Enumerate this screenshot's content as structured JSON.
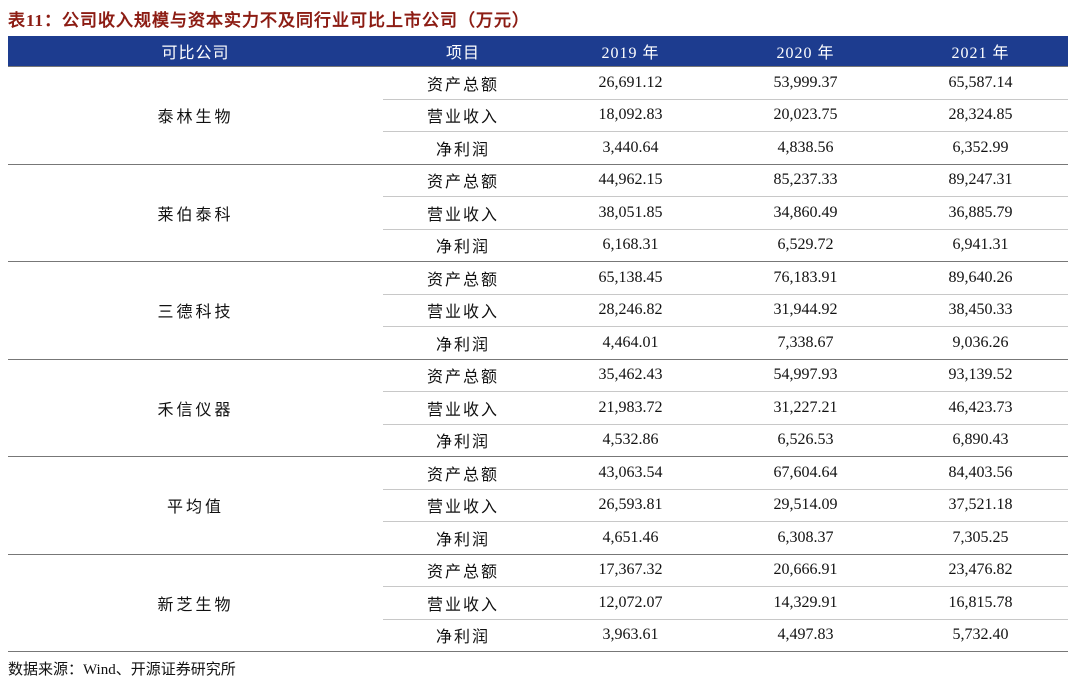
{
  "title": "表11：公司收入规模与资本实力不及同行业可比上市公司（万元）",
  "table": {
    "header": [
      "可比公司",
      "项目",
      "2019 年",
      "2020 年",
      "2021 年"
    ],
    "groups": [
      {
        "company": "泰林生物",
        "rows": [
          [
            "资产总额",
            "26,691.12",
            "53,999.37",
            "65,587.14"
          ],
          [
            "营业收入",
            "18,092.83",
            "20,023.75",
            "28,324.85"
          ],
          [
            "净利润",
            "3,440.64",
            "4,838.56",
            "6,352.99"
          ]
        ]
      },
      {
        "company": "莱伯泰科",
        "rows": [
          [
            "资产总额",
            "44,962.15",
            "85,237.33",
            "89,247.31"
          ],
          [
            "营业收入",
            "38,051.85",
            "34,860.49",
            "36,885.79"
          ],
          [
            "净利润",
            "6,168.31",
            "6,529.72",
            "6,941.31"
          ]
        ]
      },
      {
        "company": "三德科技",
        "rows": [
          [
            "资产总额",
            "65,138.45",
            "76,183.91",
            "89,640.26"
          ],
          [
            "营业收入",
            "28,246.82",
            "31,944.92",
            "38,450.33"
          ],
          [
            "净利润",
            "4,464.01",
            "7,338.67",
            "9,036.26"
          ]
        ]
      },
      {
        "company": "禾信仪器",
        "rows": [
          [
            "资产总额",
            "35,462.43",
            "54,997.93",
            "93,139.52"
          ],
          [
            "营业收入",
            "21,983.72",
            "31,227.21",
            "46,423.73"
          ],
          [
            "净利润",
            "4,532.86",
            "6,526.53",
            "6,890.43"
          ]
        ]
      },
      {
        "company": "平均值",
        "rows": [
          [
            "资产总额",
            "43,063.54",
            "67,604.64",
            "84,403.56"
          ],
          [
            "营业收入",
            "26,593.81",
            "29,514.09",
            "37,521.18"
          ],
          [
            "净利润",
            "4,651.46",
            "6,308.37",
            "7,305.25"
          ]
        ]
      },
      {
        "company": "新芝生物",
        "rows": [
          [
            "资产总额",
            "17,367.32",
            "20,666.91",
            "23,476.82"
          ],
          [
            "营业收入",
            "12,072.07",
            "14,329.91",
            "16,815.78"
          ],
          [
            "净利润",
            "3,963.61",
            "4,497.83",
            "5,732.40"
          ]
        ]
      }
    ]
  },
  "source": "数据来源：Wind、开源证券研究所"
}
